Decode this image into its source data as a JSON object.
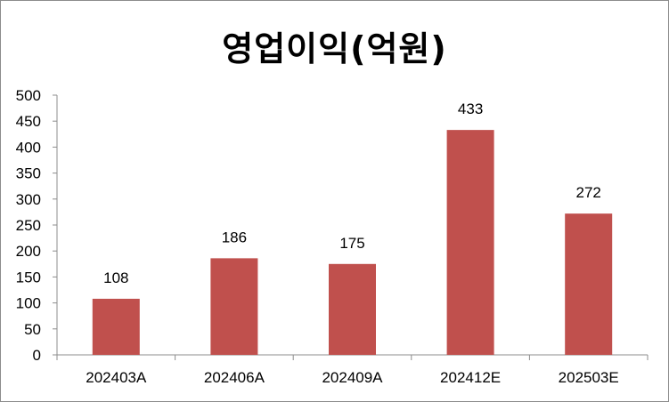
{
  "chart_data": {
    "type": "bar",
    "title": "영업이익(억원)",
    "categories": [
      "202403A",
      "202406A",
      "202409A",
      "202412E",
      "202503E"
    ],
    "values": [
      108,
      186,
      175,
      433,
      272
    ],
    "ylim": [
      0,
      500
    ],
    "yticks": [
      0,
      50,
      100,
      150,
      200,
      250,
      300,
      350,
      400,
      450,
      500
    ],
    "grid": false,
    "legend": "none",
    "bar_color": "#c0504d",
    "data_labels": true
  }
}
